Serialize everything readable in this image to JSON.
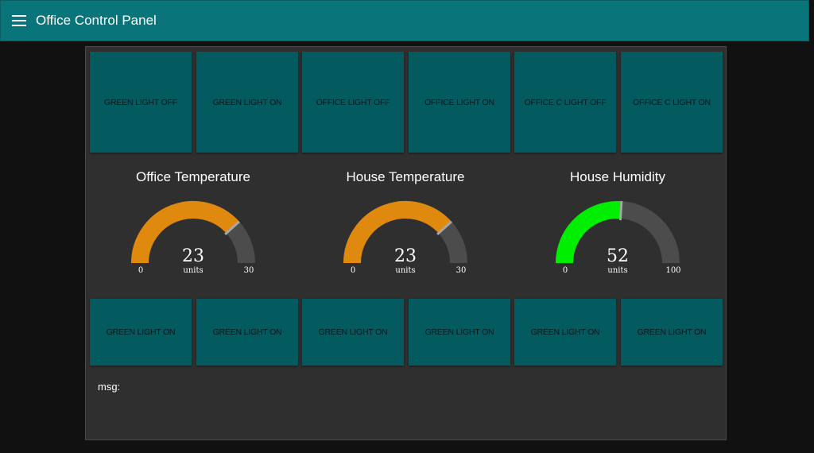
{
  "app": {
    "title": "Office Control Panel"
  },
  "buttons_top": [
    {
      "label": "GREEN LIGHT OFF"
    },
    {
      "label": "GREEN LIGHT ON"
    },
    {
      "label": "OFFICE LIGHT OFF"
    },
    {
      "label": "OFFICE LIGHT ON"
    },
    {
      "label": "OFFICE C LIGHT OFF"
    },
    {
      "label": "OFFICE C LIGHT ON"
    }
  ],
  "gauges": [
    {
      "title": "Office Temperature",
      "value": 23,
      "value_text": "23",
      "units": "units",
      "min": 0,
      "max": 30,
      "min_text": "0",
      "max_text": "30",
      "color": "#e0890f"
    },
    {
      "title": "House Temperature",
      "value": 23,
      "value_text": "23",
      "units": "units",
      "min": 0,
      "max": 30,
      "min_text": "0",
      "max_text": "30",
      "color": "#e0890f"
    },
    {
      "title": "House Humidity",
      "value": 52,
      "value_text": "52",
      "units": "units",
      "min": 0,
      "max": 100,
      "min_text": "0",
      "max_text": "100",
      "color": "#00ee00"
    }
  ],
  "buttons_bottom": [
    {
      "label": "GREEN LIGHT ON"
    },
    {
      "label": "GREEN LIGHT ON"
    },
    {
      "label": "GREEN LIGHT ON"
    },
    {
      "label": "GREEN LIGHT ON"
    },
    {
      "label": "GREEN LIGHT ON"
    },
    {
      "label": "GREEN LIGHT ON"
    }
  ],
  "msg": {
    "label": "msg:"
  },
  "colors": {
    "toolbar": "#097479",
    "button": "#035b60",
    "panel": "#2f2f2f",
    "gauge_track": "#4c4c4c"
  }
}
